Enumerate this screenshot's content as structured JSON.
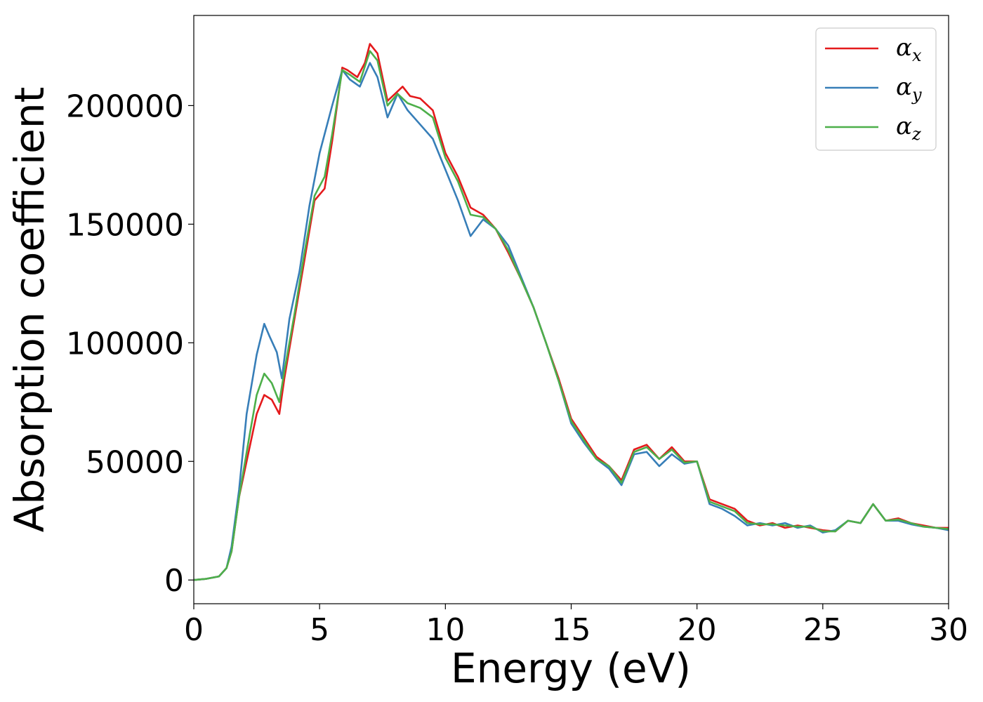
{
  "chart_data": {
    "type": "line",
    "xlabel": "Energy (eV)",
    "ylabel": "Absorption coefficient",
    "xlim": [
      0,
      30
    ],
    "ylim": [
      -10000,
      238000
    ],
    "xticks": [
      0,
      5,
      10,
      15,
      20,
      25,
      30
    ],
    "xtick_labels": [
      "0",
      "5",
      "10",
      "15",
      "20",
      "25",
      "30"
    ],
    "yticks": [
      0,
      50000,
      100000,
      150000,
      200000
    ],
    "ytick_labels": [
      "0",
      "50000",
      "100000",
      "150000",
      "200000"
    ],
    "grid": false,
    "legend_position": "upper-right",
    "series": [
      {
        "name": "α",
        "subscript": "x",
        "color": "#e41a1c",
        "points": [
          [
            0,
            0
          ],
          [
            0.5,
            500
          ],
          [
            1,
            1500
          ],
          [
            1.3,
            5000
          ],
          [
            1.5,
            12000
          ],
          [
            1.8,
            35000
          ],
          [
            2.2,
            55000
          ],
          [
            2.5,
            70000
          ],
          [
            2.8,
            78000
          ],
          [
            3.1,
            76000
          ],
          [
            3.4,
            70000
          ],
          [
            3.6,
            85000
          ],
          [
            4,
            110000
          ],
          [
            4.4,
            135000
          ],
          [
            4.8,
            160000
          ],
          [
            5.2,
            165000
          ],
          [
            5.5,
            185000
          ],
          [
            5.9,
            216000
          ],
          [
            6.1,
            215000
          ],
          [
            6.5,
            212000
          ],
          [
            6.8,
            218000
          ],
          [
            7.0,
            226000
          ],
          [
            7.3,
            222000
          ],
          [
            7.7,
            202000
          ],
          [
            8.0,
            205000
          ],
          [
            8.3,
            208000
          ],
          [
            8.6,
            204000
          ],
          [
            9.0,
            203000
          ],
          [
            9.5,
            198000
          ],
          [
            10,
            180000
          ],
          [
            10.5,
            170000
          ],
          [
            11,
            157000
          ],
          [
            11.5,
            154000
          ],
          [
            12,
            148000
          ],
          [
            12.5,
            138000
          ],
          [
            13,
            127000
          ],
          [
            13.5,
            115000
          ],
          [
            14,
            100000
          ],
          [
            14.5,
            85000
          ],
          [
            15,
            68000
          ],
          [
            15.5,
            60000
          ],
          [
            16,
            52000
          ],
          [
            16.5,
            48000
          ],
          [
            17,
            42000
          ],
          [
            17.5,
            55000
          ],
          [
            18,
            57000
          ],
          [
            18.5,
            51000
          ],
          [
            19,
            56000
          ],
          [
            19.5,
            50000
          ],
          [
            20,
            50000
          ],
          [
            20.5,
            34000
          ],
          [
            21,
            32000
          ],
          [
            21.5,
            30000
          ],
          [
            22,
            25000
          ],
          [
            22.5,
            23000
          ],
          [
            23,
            24000
          ],
          [
            23.5,
            22000
          ],
          [
            24,
            23000
          ],
          [
            24.5,
            22000
          ],
          [
            25,
            21000
          ],
          [
            25.5,
            20500
          ],
          [
            26,
            25000
          ],
          [
            26.5,
            24000
          ],
          [
            27,
            32000
          ],
          [
            27.5,
            25000
          ],
          [
            28,
            26000
          ],
          [
            28.5,
            24000
          ],
          [
            29,
            23000
          ],
          [
            29.5,
            22000
          ],
          [
            30,
            22000
          ]
        ]
      },
      {
        "name": "α",
        "subscript": "y",
        "color": "#377eb8",
        "points": [
          [
            0,
            0
          ],
          [
            0.5,
            500
          ],
          [
            1,
            1500
          ],
          [
            1.3,
            5000
          ],
          [
            1.5,
            14000
          ],
          [
            1.8,
            38000
          ],
          [
            2.1,
            70000
          ],
          [
            2.5,
            95000
          ],
          [
            2.8,
            108000
          ],
          [
            3.0,
            103000
          ],
          [
            3.3,
            96000
          ],
          [
            3.5,
            85000
          ],
          [
            3.8,
            110000
          ],
          [
            4.2,
            130000
          ],
          [
            4.6,
            158000
          ],
          [
            5,
            180000
          ],
          [
            5.5,
            200000
          ],
          [
            5.9,
            215000
          ],
          [
            6.2,
            211000
          ],
          [
            6.6,
            208000
          ],
          [
            7.0,
            218000
          ],
          [
            7.3,
            212000
          ],
          [
            7.7,
            195000
          ],
          [
            8.1,
            205000
          ],
          [
            8.5,
            198000
          ],
          [
            9,
            192000
          ],
          [
            9.5,
            186000
          ],
          [
            10,
            173000
          ],
          [
            10.5,
            160000
          ],
          [
            11,
            145000
          ],
          [
            11.5,
            152000
          ],
          [
            12,
            148000
          ],
          [
            12.5,
            141000
          ],
          [
            13,
            128000
          ],
          [
            13.5,
            115000
          ],
          [
            14,
            100000
          ],
          [
            14.5,
            84000
          ],
          [
            15,
            66000
          ],
          [
            15.5,
            58000
          ],
          [
            16,
            51000
          ],
          [
            16.5,
            47000
          ],
          [
            17,
            40000
          ],
          [
            17.5,
            53000
          ],
          [
            18,
            54000
          ],
          [
            18.5,
            48000
          ],
          [
            19,
            53000
          ],
          [
            19.5,
            49000
          ],
          [
            20,
            50000
          ],
          [
            20.5,
            32000
          ],
          [
            21,
            30000
          ],
          [
            21.5,
            27000
          ],
          [
            22,
            23000
          ],
          [
            22.5,
            24000
          ],
          [
            23,
            23000
          ],
          [
            23.5,
            24000
          ],
          [
            24,
            22000
          ],
          [
            24.5,
            23000
          ],
          [
            25,
            20000
          ],
          [
            25.5,
            21000
          ],
          [
            26,
            25000
          ],
          [
            26.5,
            24000
          ],
          [
            27,
            32000
          ],
          [
            27.5,
            25000
          ],
          [
            28,
            25000
          ],
          [
            28.5,
            23500
          ],
          [
            29,
            22500
          ],
          [
            29.5,
            22000
          ],
          [
            30,
            21000
          ]
        ]
      },
      {
        "name": "α",
        "subscript": "z",
        "color": "#4daf4a",
        "points": [
          [
            0,
            0
          ],
          [
            0.5,
            500
          ],
          [
            1,
            1500
          ],
          [
            1.3,
            5000
          ],
          [
            1.5,
            12000
          ],
          [
            1.8,
            35000
          ],
          [
            2.2,
            60000
          ],
          [
            2.5,
            78000
          ],
          [
            2.8,
            87000
          ],
          [
            3.1,
            83000
          ],
          [
            3.4,
            75000
          ],
          [
            3.6,
            88000
          ],
          [
            4,
            112000
          ],
          [
            4.4,
            138000
          ],
          [
            4.8,
            162000
          ],
          [
            5.2,
            170000
          ],
          [
            5.5,
            188000
          ],
          [
            5.9,
            215000
          ],
          [
            6.2,
            213000
          ],
          [
            6.6,
            210000
          ],
          [
            7.0,
            223000
          ],
          [
            7.3,
            219000
          ],
          [
            7.7,
            200000
          ],
          [
            8.1,
            205000
          ],
          [
            8.5,
            201000
          ],
          [
            9,
            199000
          ],
          [
            9.5,
            195000
          ],
          [
            10,
            178000
          ],
          [
            10.5,
            168000
          ],
          [
            11,
            154000
          ],
          [
            11.5,
            153000
          ],
          [
            12,
            148000
          ],
          [
            12.5,
            139000
          ],
          [
            13,
            127000
          ],
          [
            13.5,
            115000
          ],
          [
            14,
            100000
          ],
          [
            14.5,
            84000
          ],
          [
            15,
            67000
          ],
          [
            15.5,
            59000
          ],
          [
            16,
            51000
          ],
          [
            16.5,
            48000
          ],
          [
            17,
            41000
          ],
          [
            17.5,
            54000
          ],
          [
            18,
            56000
          ],
          [
            18.5,
            51000
          ],
          [
            19,
            55000
          ],
          [
            19.5,
            49500
          ],
          [
            20,
            50000
          ],
          [
            20.5,
            33000
          ],
          [
            21,
            31000
          ],
          [
            21.5,
            29000
          ],
          [
            22,
            24000
          ],
          [
            22.5,
            23500
          ],
          [
            23,
            23500
          ],
          [
            23.5,
            23000
          ],
          [
            24,
            22500
          ],
          [
            24.5,
            22500
          ],
          [
            25,
            20500
          ],
          [
            25.5,
            20500
          ],
          [
            26,
            25000
          ],
          [
            26.5,
            24000
          ],
          [
            27,
            32000
          ],
          [
            27.5,
            25000
          ],
          [
            28,
            25500
          ],
          [
            28.5,
            24000
          ],
          [
            29,
            22500
          ],
          [
            29.5,
            22000
          ],
          [
            30,
            21500
          ]
        ]
      }
    ]
  }
}
